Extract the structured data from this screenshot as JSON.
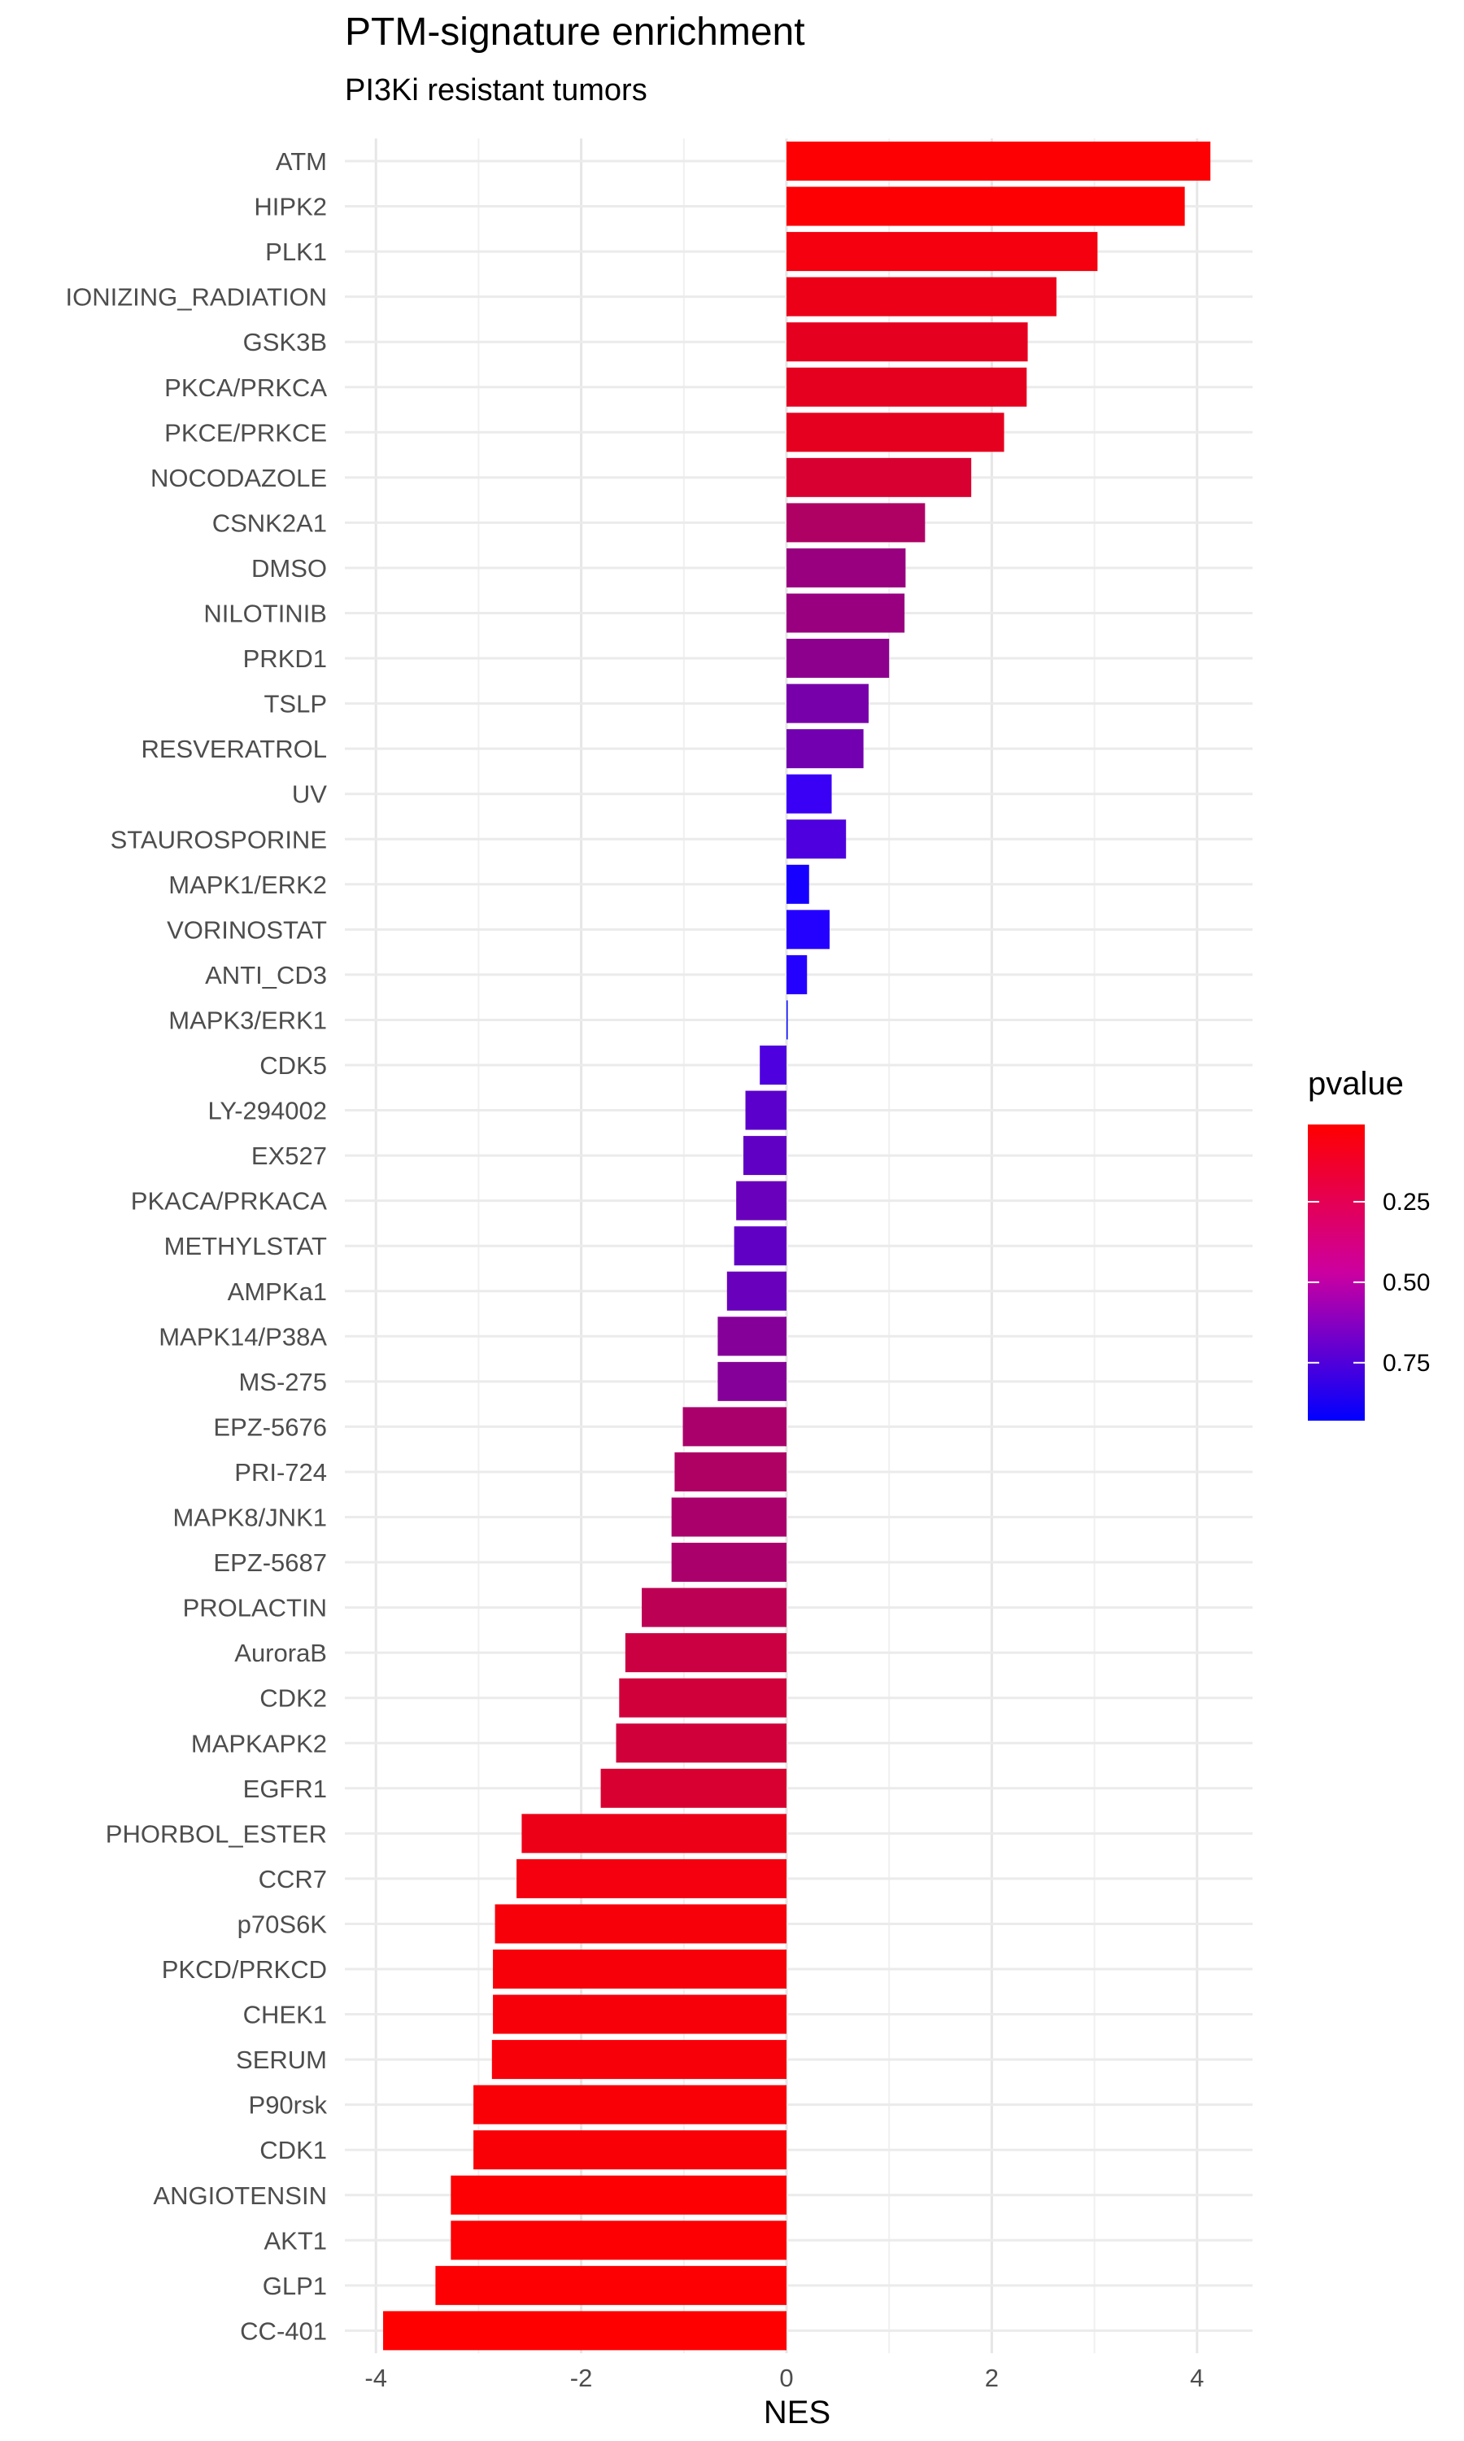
{
  "chart_data": {
    "type": "bar",
    "orientation": "horizontal",
    "title": "PTM-signature enrichment",
    "subtitle": "PI3Ki resistant tumors",
    "xlabel": "NES",
    "ylabel": "",
    "xlim": [
      -4.4,
      4.5
    ],
    "xticks": [
      -4,
      -2,
      0,
      2,
      4
    ],
    "xtick_labels": [
      "-4",
      "-2",
      "0",
      "2",
      "4"
    ],
    "grid": true,
    "legend": {
      "title": "pvalue",
      "placement": "right",
      "ticks": [
        0.25,
        0.5,
        0.75
      ],
      "tick_labels": [
        "0.25",
        "0.50",
        "0.75"
      ],
      "range": [
        0.01,
        0.93
      ],
      "low_color": "#ff0000",
      "high_color": "#0000ff"
    },
    "categories": [
      "ATM",
      "HIPK2",
      "PLK1",
      "IONIZING_RADIATION",
      "GSK3B",
      "PKCA/PRKCA",
      "PKCE/PRKCE",
      "NOCODAZOLE",
      "CSNK2A1",
      "DMSO",
      "NILOTINIB",
      "PRKD1",
      "TSLP",
      "RESVERATROL",
      "UV",
      "STAUROSPORINE",
      "MAPK1/ERK2",
      "VORINOSTAT",
      "ANTI_CD3",
      "MAPK3/ERK1",
      "CDK5",
      "LY-294002",
      "EX527",
      "PKACA/PRKACA",
      "METHYLSTAT",
      "AMPKa1",
      "MAPK14/P38A",
      "MS-275",
      "EPZ-5676",
      "PRI-724",
      "MAPK8/JNK1",
      "EPZ-5687",
      "PROLACTIN",
      "AuroraB",
      "CDK2",
      "MAPKAPK2",
      "EGFR1",
      "PHORBOL_ESTER",
      "CCR7",
      "p70S6K",
      "PKCD/PRKCD",
      "CHEK1",
      "SERUM",
      "P90rsk",
      "CDK1",
      "ANGIOTENSIN",
      "AKT1",
      "GLP1",
      "CC-401"
    ],
    "values": [
      4.13,
      3.88,
      3.03,
      2.63,
      2.35,
      2.34,
      2.12,
      1.8,
      1.35,
      1.16,
      1.15,
      1.0,
      0.8,
      0.75,
      0.44,
      0.58,
      0.22,
      0.42,
      0.2,
      0.0,
      -0.26,
      -0.4,
      -0.42,
      -0.49,
      -0.51,
      -0.58,
      -0.67,
      -0.67,
      -1.01,
      -1.09,
      -1.12,
      -1.12,
      -1.41,
      -1.57,
      -1.63,
      -1.66,
      -1.81,
      -2.58,
      -2.63,
      -2.84,
      -2.86,
      -2.86,
      -2.87,
      -3.05,
      -3.05,
      -3.27,
      -3.27,
      -3.42,
      -3.93
    ],
    "pvalue": [
      0.02,
      0.02,
      0.05,
      0.08,
      0.1,
      0.1,
      0.1,
      0.15,
      0.3,
      0.38,
      0.38,
      0.42,
      0.5,
      0.52,
      0.72,
      0.65,
      0.85,
      0.8,
      0.8,
      0.93,
      0.65,
      0.6,
      0.58,
      0.55,
      0.58,
      0.55,
      0.45,
      0.45,
      0.32,
      0.3,
      0.32,
      0.32,
      0.25,
      0.2,
      0.18,
      0.18,
      0.15,
      0.08,
      0.05,
      0.04,
      0.04,
      0.04,
      0.04,
      0.03,
      0.03,
      0.02,
      0.02,
      0.02,
      0.01
    ]
  }
}
